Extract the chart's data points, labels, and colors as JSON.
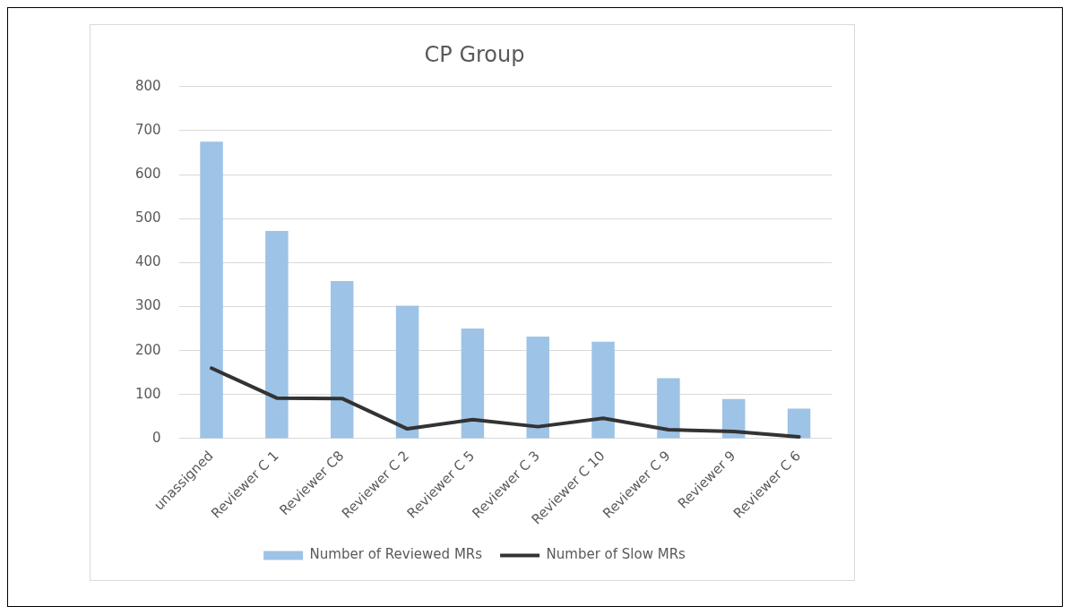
{
  "chart_data": {
    "type": "bar",
    "title": "CP Group",
    "categories": [
      "unassigned",
      "Reviewer C 1",
      "Reviewer C8",
      "Reviewer C 2",
      "Reviewer C 5",
      "Reviewer C 3",
      "Reviewer C 10",
      "Reviewer C 9",
      "Reviewer 9",
      "Reviewer C 6"
    ],
    "series": [
      {
        "name": "Number of Reviewed MRs",
        "color": "#9dc3e6",
        "values": [
          675,
          472,
          358,
          302,
          250,
          232,
          220,
          137,
          90,
          68
        ]
      },
      {
        "name": "Number of Slow MRs",
        "type": "line",
        "color": "#333333",
        "values": [
          160,
          92,
          91,
          22,
          43,
          27,
          46,
          20,
          16,
          4
        ]
      }
    ],
    "ylim": [
      0,
      800
    ],
    "yticks": [
      0,
      100,
      200,
      300,
      400,
      500,
      600,
      700,
      800
    ],
    "grid": "y",
    "legend": "bottom",
    "marker": "none"
  }
}
